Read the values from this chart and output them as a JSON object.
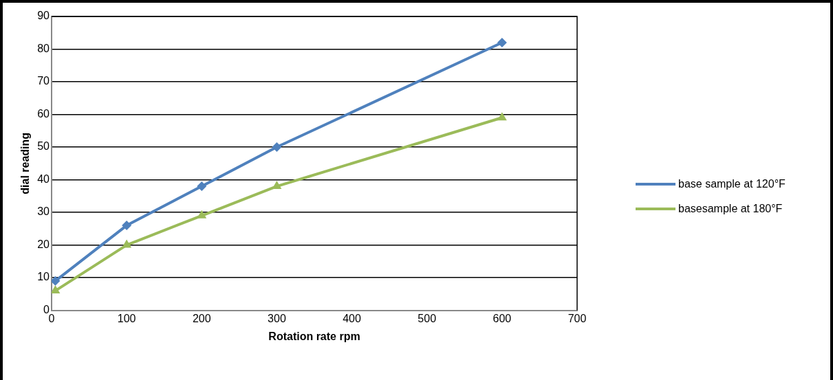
{
  "chart_data": {
    "type": "line",
    "xlabel": "Rotation rate rpm",
    "ylabel": "dial reading",
    "series": [
      {
        "name": "base sample at 120°F",
        "color": "#4f81bd",
        "marker": "diamond",
        "x": [
          5,
          100,
          200,
          300,
          600
        ],
        "values": [
          9,
          26,
          38,
          50,
          82
        ]
      },
      {
        "name": "basesample at 180°F",
        "color": "#9bbb59",
        "marker": "triangle",
        "x": [
          5,
          100,
          200,
          300,
          600
        ],
        "values": [
          6,
          20,
          29,
          38,
          59
        ]
      }
    ],
    "xlim": [
      0,
      700
    ],
    "xticks": [
      0,
      100,
      200,
      300,
      400,
      500,
      600,
      700
    ],
    "ylim": [
      0,
      90
    ],
    "yticks": [
      0,
      10,
      20,
      30,
      40,
      50,
      60,
      70,
      80,
      90
    ],
    "grid": "y",
    "legend": "right",
    "line_style": "solid"
  }
}
